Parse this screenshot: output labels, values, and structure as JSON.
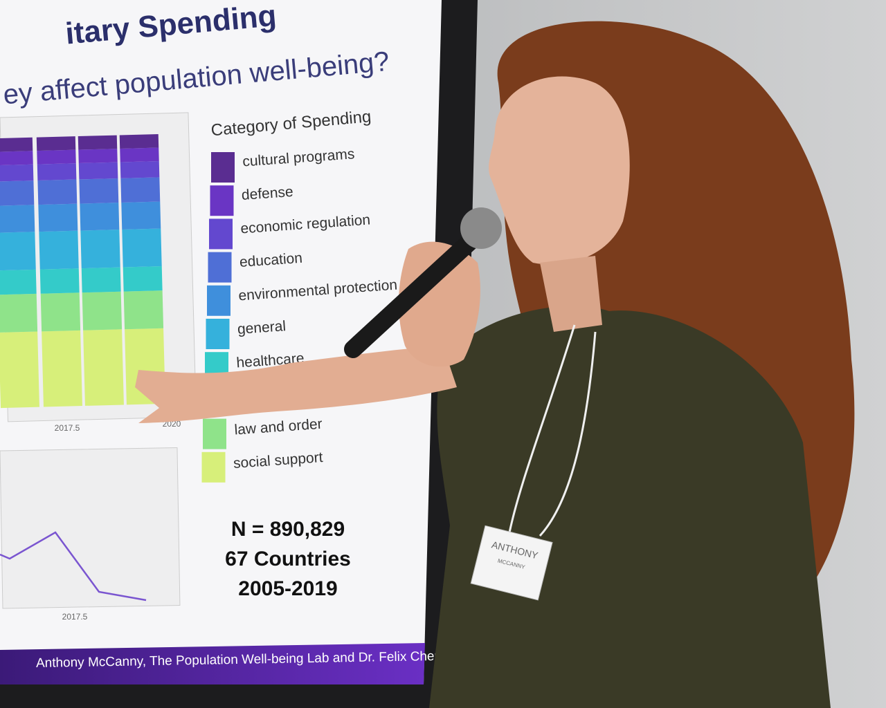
{
  "slide": {
    "title": "itary Spending",
    "subtitle": "ey affect population well-being?",
    "legend_title": "Category of Spending",
    "legend": [
      {
        "label": "cultural programs",
        "color": "#5a2d91"
      },
      {
        "label": "defense",
        "color": "#6a35c4"
      },
      {
        "label": "economic regulation",
        "color": "#6348cf"
      },
      {
        "label": "education",
        "color": "#4f6fd6"
      },
      {
        "label": "environmental protection",
        "color": "#3f8fdc"
      },
      {
        "label": "general",
        "color": "#35b1dc"
      },
      {
        "label": "healthcare",
        "color": "#34cbc9"
      },
      {
        "label": "law and order",
        "color": "#8fe38a"
      },
      {
        "label": "social support",
        "color": "#d7ef7a"
      }
    ],
    "top_chart_ticks": [
      "2017.5",
      "2020"
    ],
    "bottom_chart_ticks": [
      "2017.5"
    ],
    "stats": [
      "N = 890,829",
      "67 Countries",
      "2005-2019"
    ],
    "footer": "Anthony McCanny, The Population Well-being Lab and Dr. Felix Cheung"
  },
  "badge": {
    "first": "ANTHONY",
    "last": "MCCANNY"
  }
}
